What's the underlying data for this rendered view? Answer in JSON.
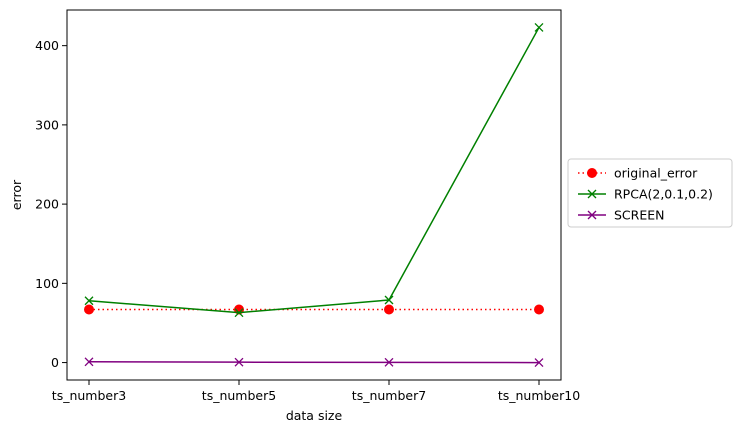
{
  "chart_data": {
    "type": "line",
    "categories": [
      "ts_number3",
      "ts_number5",
      "ts_number7",
      "ts_number10"
    ],
    "xlabel": "data size",
    "ylabel": "error",
    "ylim": [
      -22,
      445
    ],
    "yticks": [
      0,
      100,
      200,
      300,
      400
    ],
    "grid": false,
    "legend_position": "outside-right",
    "series": [
      {
        "name": "original_error",
        "values": [
          67,
          67,
          67,
          67
        ],
        "color": "#ff0000",
        "line_style": "dotted",
        "marker": "circle"
      },
      {
        "name": "RPCA(2,0.1,0.2)",
        "values": [
          78,
          63,
          79,
          423
        ],
        "color": "#008000",
        "line_style": "solid",
        "marker": "x"
      },
      {
        "name": "SCREEN",
        "values": [
          1,
          0.5,
          0.3,
          0
        ],
        "color": "#800080",
        "line_style": "solid",
        "marker": "x"
      }
    ]
  }
}
